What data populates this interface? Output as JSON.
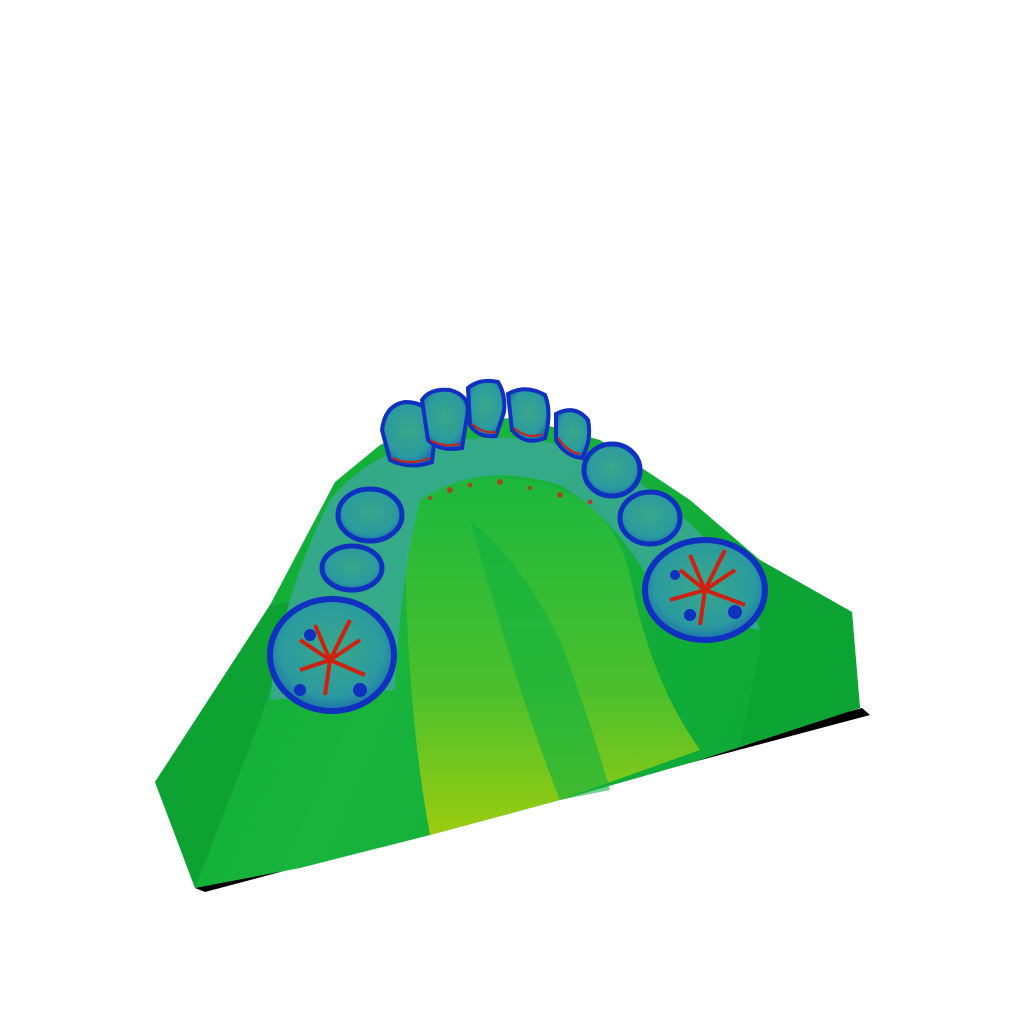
{
  "viewport": {
    "background_color": "#ffffff"
  },
  "model": {
    "subject": "dental-arch-curvature-map",
    "colors": {
      "base_green": "#0fb43a",
      "dark_green": "#0a9a2e",
      "light_green": "#3cc43a",
      "yellow_green": "#8ccc10",
      "cyan": "#2aa89a",
      "blue": "#1030c0",
      "red": "#d02010",
      "shadow": "#000000"
    }
  }
}
